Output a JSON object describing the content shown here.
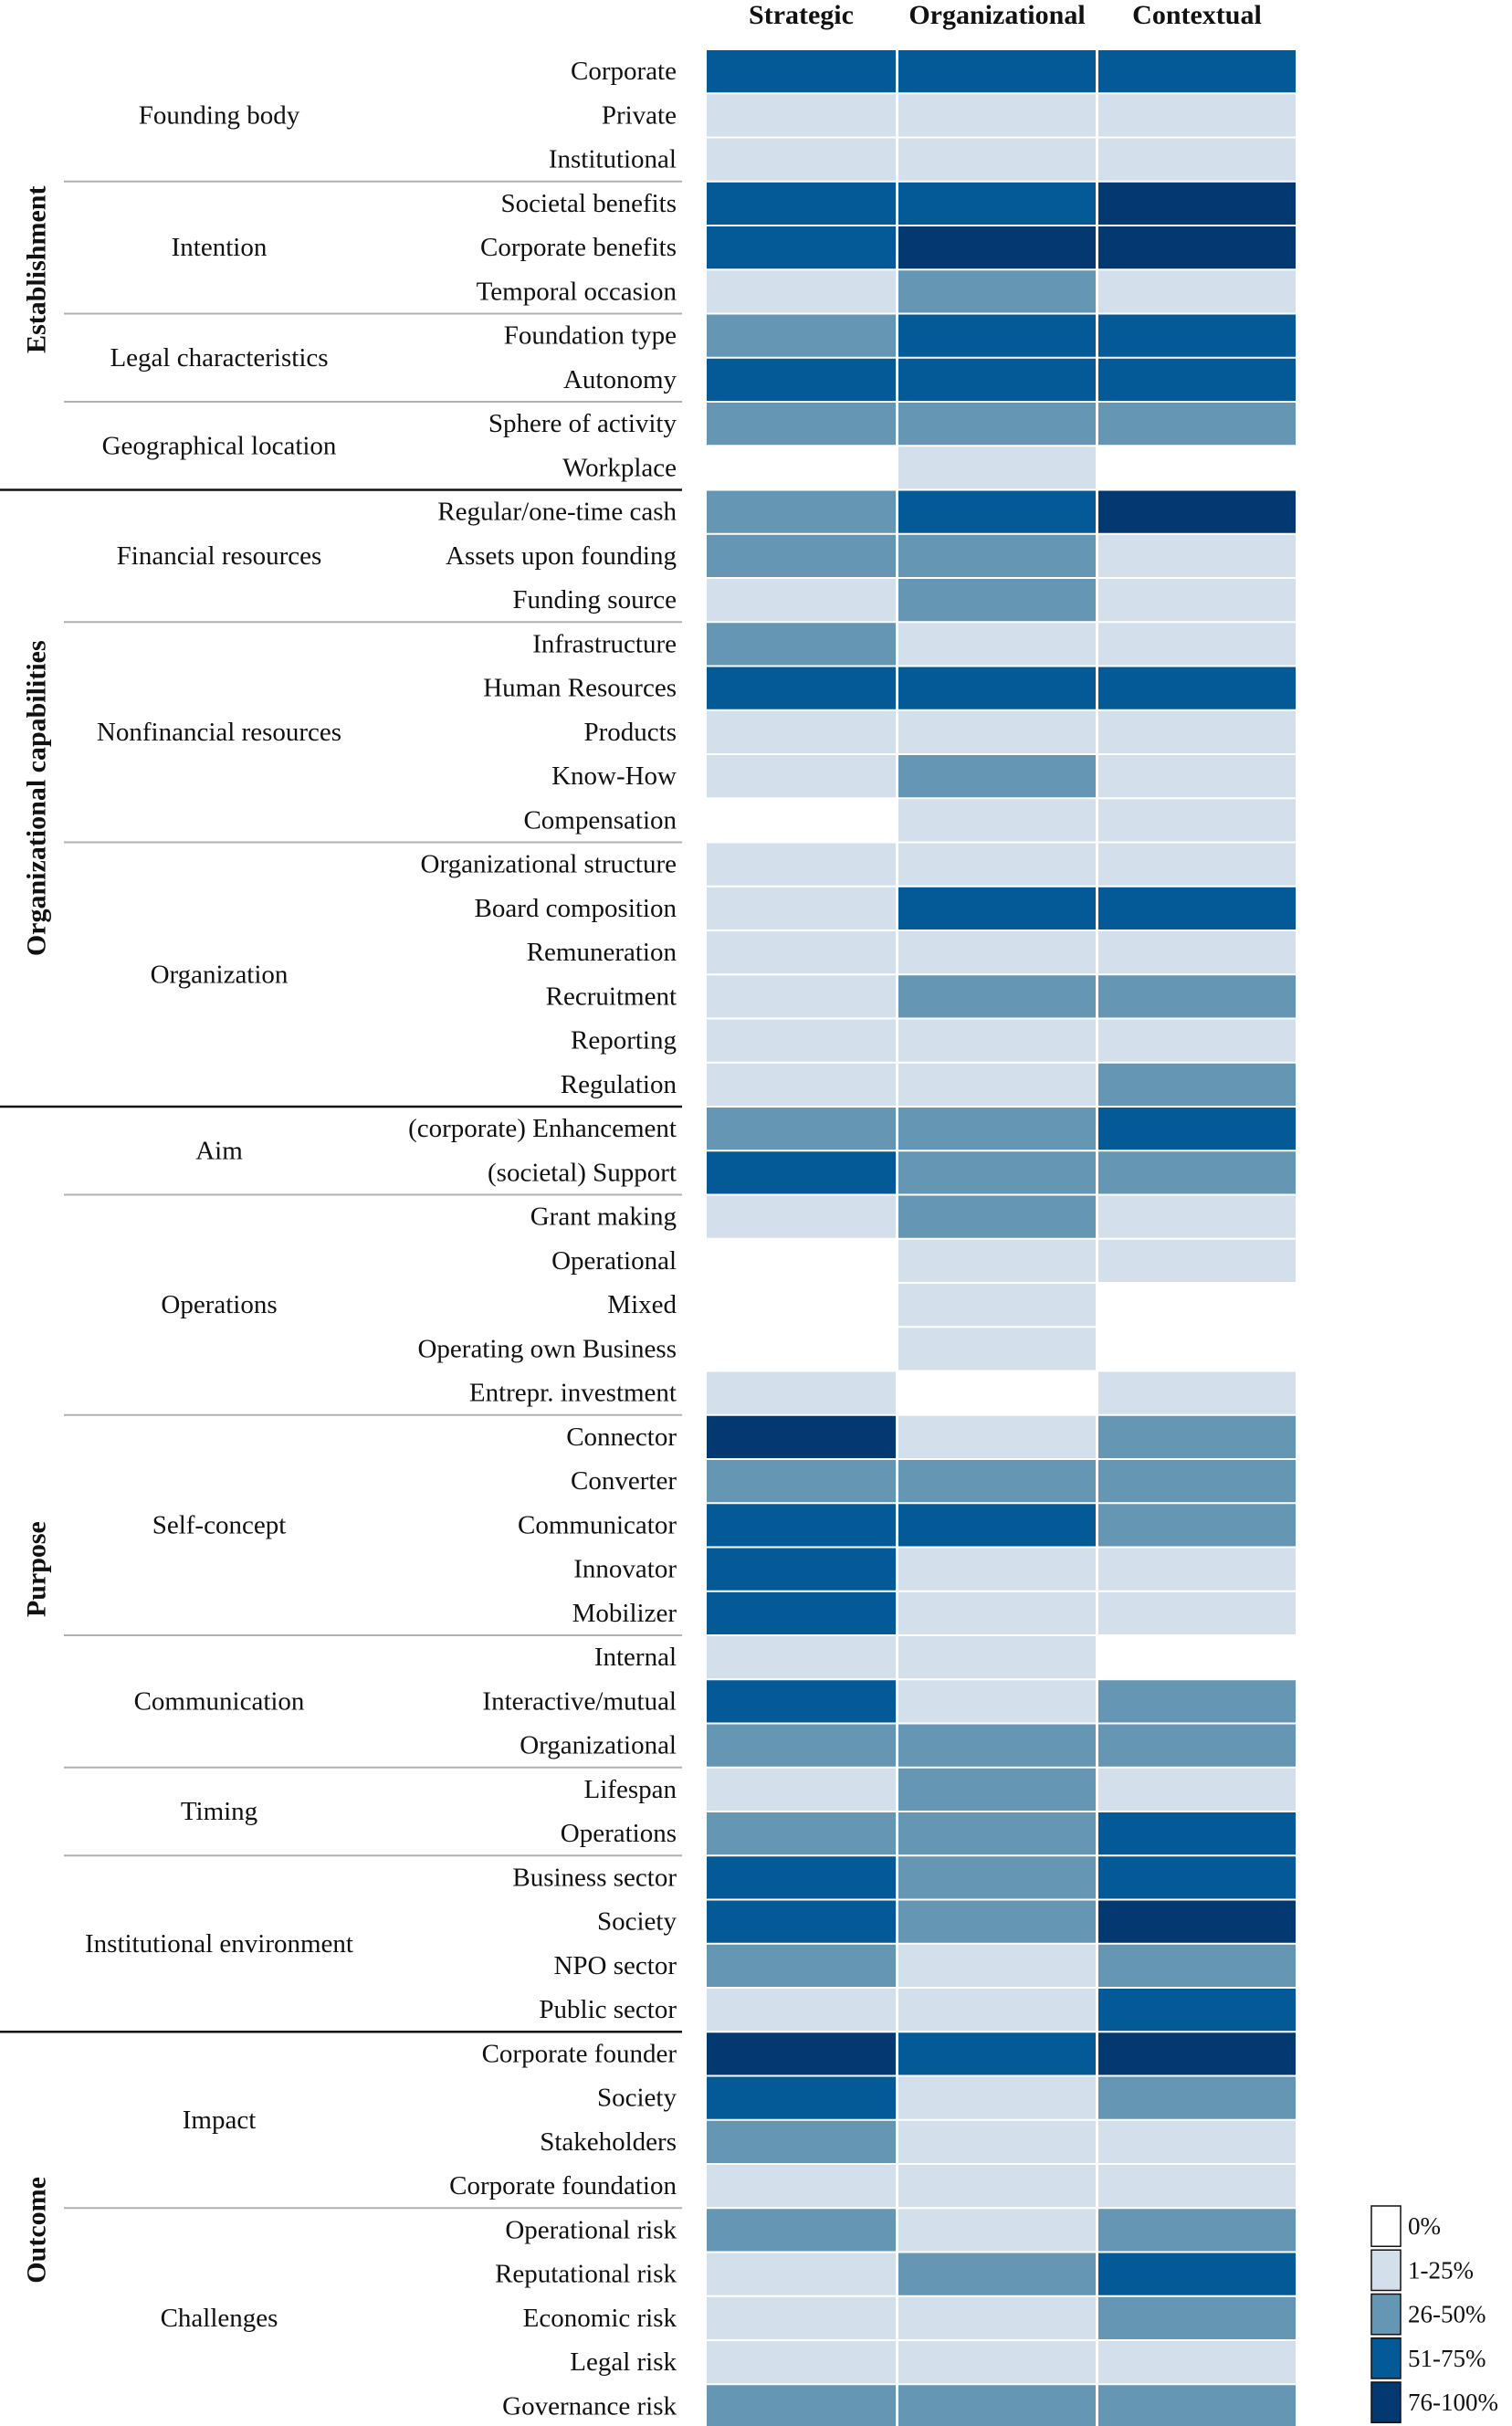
{
  "chart_data": {
    "type": "heatmap",
    "columns": [
      "Strategic",
      "Organizational",
      "Contextual"
    ],
    "legend": [
      {
        "label": "0%",
        "level": 0
      },
      {
        "label": "1-25%",
        "level": 1
      },
      {
        "label": "26-50%",
        "level": 2
      },
      {
        "label": "51-75%",
        "level": 3
      },
      {
        "label": "76-100%",
        "level": 4
      }
    ],
    "colors": [
      "#ffffff",
      "#d3e0eb",
      "#6596b3",
      "#045a96",
      "#043870"
    ],
    "sections": [
      {
        "label": "Establishment",
        "groups": [
          {
            "label": "Founding body",
            "rows": [
              {
                "label": "Corporate",
                "values": [
                  3,
                  3,
                  3
                ]
              },
              {
                "label": "Private",
                "values": [
                  1,
                  1,
                  1
                ]
              },
              {
                "label": "Institutional",
                "values": [
                  1,
                  1,
                  1
                ]
              }
            ]
          },
          {
            "label": "Intention",
            "rows": [
              {
                "label": "Societal benefits",
                "values": [
                  3,
                  3,
                  4
                ]
              },
              {
                "label": "Corporate benefits",
                "values": [
                  3,
                  4,
                  4
                ]
              },
              {
                "label": "Temporal occasion",
                "values": [
                  1,
                  2,
                  1
                ]
              }
            ]
          },
          {
            "label": "Legal characteristics",
            "rows": [
              {
                "label": "Foundation type",
                "values": [
                  2,
                  3,
                  3
                ]
              },
              {
                "label": "Autonomy",
                "values": [
                  3,
                  3,
                  3
                ]
              }
            ]
          },
          {
            "label": "Geographical location",
            "rows": [
              {
                "label": "Sphere of activity",
                "values": [
                  2,
                  2,
                  2
                ]
              },
              {
                "label": "Workplace",
                "values": [
                  0,
                  1,
                  0
                ]
              }
            ]
          }
        ]
      },
      {
        "label": "Organizational capabilities",
        "groups": [
          {
            "label": "Financial resources",
            "rows": [
              {
                "label": "Regular/one-time cash",
                "values": [
                  2,
                  3,
                  4
                ]
              },
              {
                "label": "Assets upon founding",
                "values": [
                  2,
                  2,
                  1
                ]
              },
              {
                "label": "Funding source",
                "values": [
                  1,
                  2,
                  1
                ]
              }
            ]
          },
          {
            "label": "Nonfinancial resources",
            "rows": [
              {
                "label": "Infrastructure",
                "values": [
                  2,
                  1,
                  1
                ]
              },
              {
                "label": "Human Resources",
                "values": [
                  3,
                  3,
                  3
                ]
              },
              {
                "label": "Products",
                "values": [
                  1,
                  1,
                  1
                ]
              },
              {
                "label": "Know-How",
                "values": [
                  1,
                  2,
                  1
                ]
              },
              {
                "label": "Compensation",
                "values": [
                  0,
                  1,
                  1
                ]
              }
            ]
          },
          {
            "label": "Organization",
            "rows": [
              {
                "label": "Organizational structure",
                "values": [
                  1,
                  1,
                  1
                ]
              },
              {
                "label": "Board composition",
                "values": [
                  1,
                  3,
                  3
                ]
              },
              {
                "label": "Remuneration",
                "values": [
                  1,
                  1,
                  1
                ]
              },
              {
                "label": "Recruitment",
                "values": [
                  1,
                  2,
                  2
                ]
              },
              {
                "label": "Reporting",
                "values": [
                  1,
                  1,
                  1
                ]
              },
              {
                "label": "Regulation",
                "values": [
                  1,
                  1,
                  2
                ]
              }
            ]
          }
        ]
      },
      {
        "label": "Purpose",
        "groups": [
          {
            "label": "Aim",
            "rows": [
              {
                "label": "(corporate) Enhancement",
                "values": [
                  2,
                  2,
                  3
                ]
              },
              {
                "label": "(societal) Support",
                "values": [
                  3,
                  2,
                  2
                ]
              }
            ]
          },
          {
            "label": "Operations",
            "rows": [
              {
                "label": "Grant making",
                "values": [
                  1,
                  2,
                  1
                ]
              },
              {
                "label": "Operational",
                "values": [
                  0,
                  1,
                  1
                ]
              },
              {
                "label": "Mixed",
                "values": [
                  0,
                  1,
                  0
                ]
              },
              {
                "label": "Operating own Business",
                "values": [
                  0,
                  1,
                  0
                ]
              },
              {
                "label": "Entrepr. investment",
                "values": [
                  1,
                  0,
                  1
                ]
              }
            ]
          },
          {
            "label": "Self-concept",
            "rows": [
              {
                "label": "Connector",
                "values": [
                  4,
                  1,
                  2
                ]
              },
              {
                "label": "Converter",
                "values": [
                  2,
                  2,
                  2
                ]
              },
              {
                "label": "Communicator",
                "values": [
                  3,
                  3,
                  2
                ]
              },
              {
                "label": "Innovator",
                "values": [
                  3,
                  1,
                  1
                ]
              },
              {
                "label": "Mobilizer",
                "values": [
                  3,
                  1,
                  1
                ]
              }
            ]
          },
          {
            "label": "Communication",
            "rows": [
              {
                "label": "Internal",
                "values": [
                  1,
                  1,
                  0
                ]
              },
              {
                "label": "Interactive/mutual",
                "values": [
                  3,
                  1,
                  2
                ]
              },
              {
                "label": "Organizational",
                "values": [
                  2,
                  2,
                  2
                ]
              }
            ]
          },
          {
            "label": "Timing",
            "rows": [
              {
                "label": "Lifespan",
                "values": [
                  1,
                  2,
                  1
                ]
              },
              {
                "label": "Operations",
                "values": [
                  2,
                  2,
                  3
                ]
              }
            ]
          },
          {
            "label": "Institutional environment",
            "rows": [
              {
                "label": "Business sector",
                "values": [
                  3,
                  2,
                  3
                ]
              },
              {
                "label": "Society",
                "values": [
                  3,
                  2,
                  4
                ]
              },
              {
                "label": "NPO sector",
                "values": [
                  2,
                  1,
                  2
                ]
              },
              {
                "label": "Public sector",
                "values": [
                  1,
                  1,
                  3
                ]
              }
            ]
          }
        ]
      },
      {
        "label": "Outcome",
        "groups": [
          {
            "label": "Impact",
            "rows": [
              {
                "label": "Corporate founder",
                "values": [
                  4,
                  3,
                  4
                ]
              },
              {
                "label": "Society",
                "values": [
                  3,
                  1,
                  2
                ]
              },
              {
                "label": "Stakeholders",
                "values": [
                  2,
                  1,
                  1
                ]
              },
              {
                "label": "Corporate foundation",
                "values": [
                  1,
                  1,
                  1
                ]
              }
            ]
          },
          {
            "label": "Challenges",
            "rows": [
              {
                "label": "Operational risk",
                "values": [
                  2,
                  1,
                  2
                ]
              },
              {
                "label": "Reputational risk",
                "values": [
                  1,
                  2,
                  3
                ]
              },
              {
                "label": "Economic risk",
                "values": [
                  1,
                  1,
                  2
                ]
              },
              {
                "label": "Legal risk",
                "values": [
                  1,
                  1,
                  1
                ]
              },
              {
                "label": "Governance risk",
                "values": [
                  2,
                  2,
                  2
                ]
              }
            ]
          }
        ]
      }
    ]
  }
}
